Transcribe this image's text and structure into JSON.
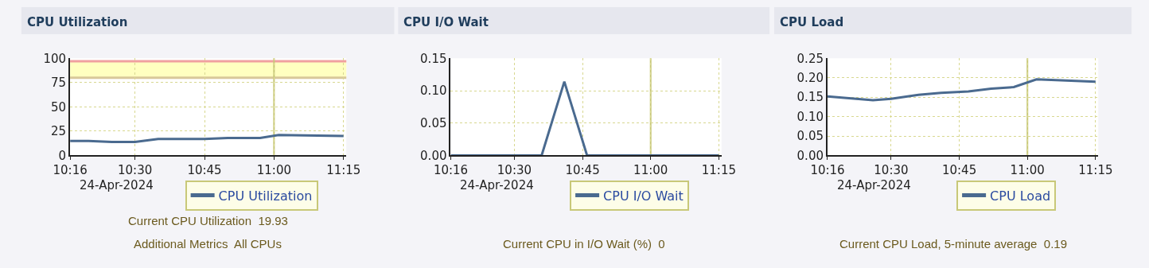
{
  "chart_data": [
    {
      "type": "line",
      "title": "CPU Utilization",
      "x": [
        10.2667,
        10.3333,
        10.4167,
        10.5,
        10.5833,
        10.6667,
        10.75,
        10.8333,
        10.9167,
        10.95,
        11.0167,
        11.25
      ],
      "series": [
        {
          "name": "CPU Utilization",
          "color": "#4a6a8f",
          "values": [
            15,
            15,
            14,
            14,
            17,
            17,
            17,
            18,
            18,
            18,
            21,
            20
          ]
        }
      ],
      "xlim": [
        10.2667,
        11.26
      ],
      "xticks": [
        {
          "value": 10.2667,
          "label": "10:16"
        },
        {
          "value": 10.5,
          "label": "10:30"
        },
        {
          "value": 10.75,
          "label": "10:45"
        },
        {
          "value": 11,
          "label": "11:00"
        },
        {
          "value": 11.25,
          "label": "11:15"
        }
      ],
      "ylim": [
        0,
        100
      ],
      "yticks": [
        0,
        25,
        50,
        75,
        100
      ],
      "grid": true,
      "legend": "bottom",
      "bands": [
        {
          "axis": "y",
          "from": 80,
          "to": 97,
          "color": "#ffffc0"
        }
      ],
      "ref_lines": [
        {
          "axis": "y",
          "value": 97,
          "color": "#f0a0a0"
        },
        {
          "axis": "y",
          "value": 80,
          "color": "#d8c89a"
        },
        {
          "axis": "x",
          "value": 11,
          "color": "#c8c878"
        }
      ],
      "annotations": [
        "24-Apr-2024",
        "Current CPU Utilization  19.93",
        "Additional Metrics  All CPUs"
      ]
    },
    {
      "type": "line",
      "title": "CPU I/O Wait",
      "x": [
        10.2667,
        10.6,
        10.6833,
        10.7667,
        10.85,
        10.9333,
        11,
        11.25
      ],
      "series": [
        {
          "name": "CPU I/O Wait",
          "color": "#4a6a8f",
          "values": [
            0,
            0,
            0.114,
            0,
            0,
            0,
            0,
            0
          ]
        }
      ],
      "xlim": [
        10.2667,
        11.26
      ],
      "xticks": [
        {
          "value": 10.2667,
          "label": "10:16"
        },
        {
          "value": 10.5,
          "label": "10:30"
        },
        {
          "value": 10.75,
          "label": "10:45"
        },
        {
          "value": 11,
          "label": "11:00"
        },
        {
          "value": 11.25,
          "label": "11:15"
        }
      ],
      "ylim": [
        0,
        0.15
      ],
      "yticks": [
        {
          "value": 0,
          "label": "0.00"
        },
        {
          "value": 0.05,
          "label": "0.05"
        },
        {
          "value": 0.1,
          "label": "0.10"
        },
        {
          "value": 0.15,
          "label": "0.15"
        }
      ],
      "grid": true,
      "legend": "bottom",
      "ref_lines": [
        {
          "axis": "x",
          "value": 11,
          "color": "#c8c878"
        }
      ],
      "annotations": [
        "24-Apr-2024",
        "Current CPU in I/O Wait (%)  0"
      ]
    },
    {
      "type": "line",
      "title": "CPU Load",
      "x": [
        10.2667,
        10.4333,
        10.5,
        10.6,
        10.6833,
        10.7833,
        10.8667,
        10.95,
        11.0333,
        11.25
      ],
      "series": [
        {
          "name": "CPU Load",
          "color": "#4a6a8f",
          "values": [
            0.152,
            0.142,
            0.146,
            0.156,
            0.161,
            0.165,
            0.172,
            0.176,
            0.196,
            0.19
          ]
        }
      ],
      "xlim": [
        10.2667,
        11.26
      ],
      "xticks": [
        {
          "value": 10.2667,
          "label": "10:16"
        },
        {
          "value": 10.5,
          "label": "10:30"
        },
        {
          "value": 10.75,
          "label": "10:45"
        },
        {
          "value": 11,
          "label": "11:00"
        },
        {
          "value": 11.25,
          "label": "11:15"
        }
      ],
      "ylim": [
        0,
        0.25
      ],
      "yticks": [
        {
          "value": 0,
          "label": "0.00"
        },
        {
          "value": 0.05,
          "label": "0.05"
        },
        {
          "value": 0.1,
          "label": "0.10"
        },
        {
          "value": 0.15,
          "label": "0.15"
        },
        {
          "value": 0.2,
          "label": "0.20"
        },
        {
          "value": 0.25,
          "label": "0.25"
        }
      ],
      "grid": true,
      "legend": "bottom",
      "ref_lines": [
        {
          "axis": "x",
          "value": 11,
          "color": "#c8c878"
        }
      ],
      "annotations": [
        "24-Apr-2024",
        "Current CPU Load, 5-minute average  0.19"
      ]
    }
  ]
}
